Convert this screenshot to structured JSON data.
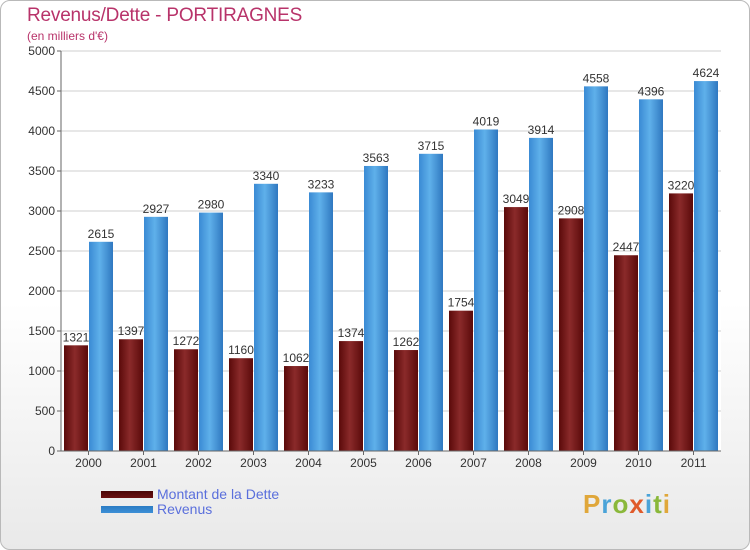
{
  "header": {
    "title": "Revenus/Dette - PORTIRAGNES",
    "subtitle": "(en milliers d'€)"
  },
  "legend": {
    "items": [
      {
        "label": "Montant de la Dette",
        "color": "#6b0f0f"
      },
      {
        "label": "Revenus",
        "color": "#3d8fd6"
      }
    ]
  },
  "logo": {
    "letters": [
      {
        "ch": "P",
        "color": "#e0a73a"
      },
      {
        "ch": "r",
        "color": "#4aa3d8"
      },
      {
        "ch": "o",
        "color": "#8ab83a"
      },
      {
        "ch": "x",
        "color": "#e05a2a"
      },
      {
        "ch": "i",
        "color": "#4aa3d8"
      },
      {
        "ch": "t",
        "color": "#8ab83a"
      },
      {
        "ch": "i",
        "color": "#e0a73a"
      }
    ]
  },
  "chart_data": {
    "type": "bar",
    "title": "Revenus/Dette - PORTIRAGNES",
    "subtitle": "(en milliers d'€)",
    "categories": [
      "2000",
      "2001",
      "2002",
      "2003",
      "2004",
      "2005",
      "2006",
      "2007",
      "2008",
      "2009",
      "2010",
      "2011"
    ],
    "series": [
      {
        "name": "Montant de la Dette",
        "color": "#7a1a1a",
        "values": [
          1321,
          1397,
          1272,
          1160,
          1062,
          1374,
          1262,
          1754,
          3049,
          2908,
          2447,
          3220
        ],
        "labels": [
          "1321",
          "1397",
          "1272",
          "1160",
          "1062",
          "1374",
          "1262",
          "1754",
          "3049",
          "2908",
          "2447",
          "3220"
        ]
      },
      {
        "name": "Revenus",
        "color": "#3d8fd6",
        "values": [
          2615,
          2927,
          2980,
          3340,
          3233,
          3563,
          3715,
          4019,
          3914,
          4558,
          4396,
          4624
        ],
        "labels": [
          "2615",
          "2927",
          "2980",
          "3340",
          "3233",
          "3563",
          "3715",
          "4019",
          "3914",
          "4558",
          "4396",
          "4624"
        ]
      }
    ],
    "ylim": [
      0,
      5000
    ],
    "yticks": [
      "0",
      "500",
      "1000",
      "1500",
      "2000",
      "2500",
      "3000",
      "3500",
      "4000",
      "4500",
      "5000"
    ],
    "grid": true,
    "legend_position": "bottom-left"
  }
}
